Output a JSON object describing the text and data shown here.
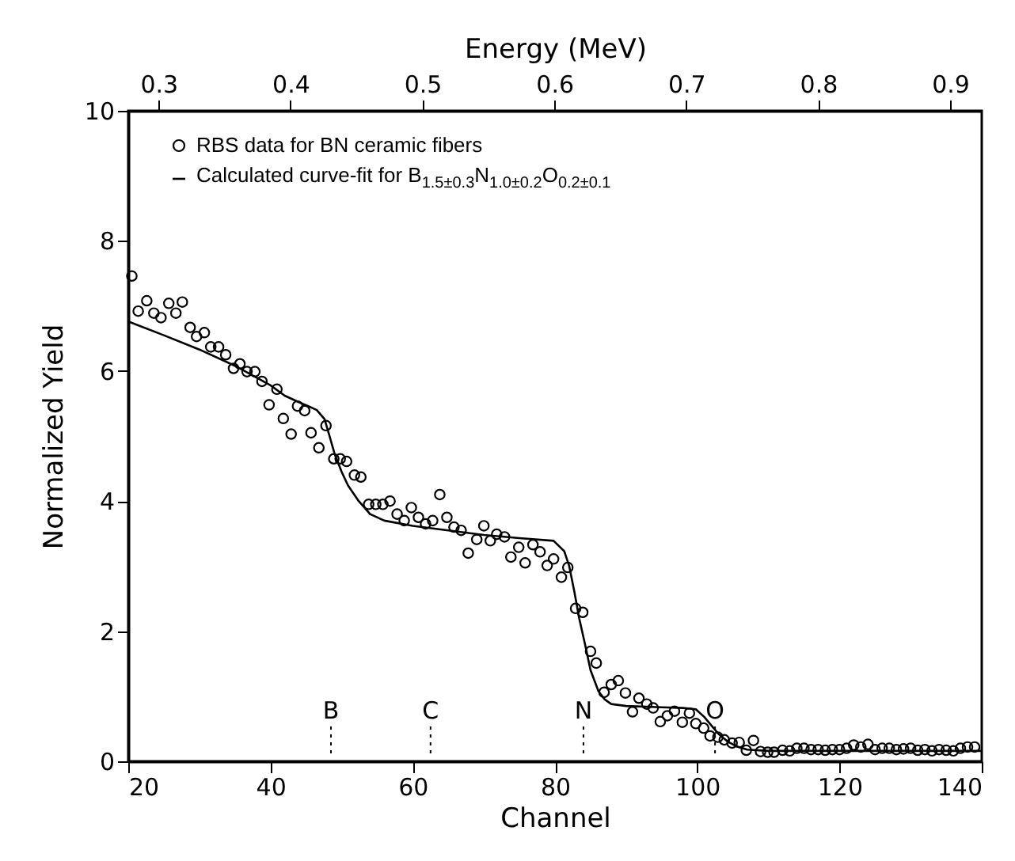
{
  "chart_data": {
    "type": "scatter",
    "xlabel": "Channel",
    "ylabel": "Normalized Yield",
    "x2label": "Energy (MeV)",
    "xlim": [
      20,
      140
    ],
    "xticks": [
      20,
      40,
      60,
      80,
      100,
      120,
      140
    ],
    "x2lim": [
      0.277,
      0.924
    ],
    "x2ticks": [
      0.3,
      0.4,
      0.5,
      0.6,
      0.7,
      0.8,
      0.9
    ],
    "ylim": [
      0,
      10
    ],
    "yticks": [
      0,
      2,
      4,
      6,
      8,
      10
    ],
    "grid": false,
    "legend": "top left",
    "series": [
      {
        "marker": "circle",
        "name": "RBS data for BN ceramic fibers",
        "color": "#000000",
        "x": [
          20.5,
          21.4,
          22.6,
          23.6,
          24.6,
          25.7,
          26.7,
          27.6,
          28.7,
          29.6,
          30.7,
          31.6,
          32.7,
          33.7,
          34.8,
          35.7,
          36.7,
          37.8,
          38.8,
          39.8,
          40.9,
          41.8,
          42.9,
          43.8,
          44.8,
          45.7,
          46.8,
          47.8,
          48.9,
          49.8,
          50.7,
          51.8,
          52.7,
          53.8,
          54.8,
          55.8,
          56.8,
          57.8,
          58.8,
          59.8,
          60.8,
          61.8,
          62.8,
          63.8,
          64.8,
          65.8,
          66.8,
          67.8,
          69.0,
          70.0,
          70.9,
          71.8,
          72.9,
          73.8,
          74.9,
          75.8,
          76.9,
          77.9,
          78.9,
          79.8,
          80.9,
          81.8,
          82.9,
          83.9,
          85.0,
          85.8,
          86.9,
          87.9,
          88.9,
          89.9,
          90.9,
          91.8,
          92.9,
          93.8,
          94.8,
          95.8,
          96.8,
          97.9,
          98.9,
          99.8,
          100.9,
          101.8,
          102.9,
          103.8,
          104.9,
          105.9,
          106.9,
          107.9,
          108.9,
          109.9,
          110.8,
          112,
          113,
          114,
          115,
          116,
          117,
          118,
          119,
          120,
          121,
          122,
          123,
          124,
          125,
          126,
          127,
          128,
          129,
          130,
          131,
          132,
          133,
          134,
          135,
          136,
          137,
          138,
          139
        ],
        "values": [
          7.46,
          6.92,
          7.08,
          6.89,
          6.82,
          7.04,
          6.89,
          7.06,
          6.67,
          6.53,
          6.59,
          6.37,
          6.37,
          6.25,
          6.04,
          6.11,
          5.99,
          5.99,
          5.84,
          5.48,
          5.72,
          5.27,
          5.03,
          5.46,
          5.39,
          5.05,
          4.82,
          5.16,
          4.65,
          4.65,
          4.61,
          4.4,
          4.37,
          3.95,
          3.95,
          3.95,
          4.0,
          3.8,
          3.7,
          3.9,
          3.75,
          3.65,
          3.7,
          4.1,
          3.75,
          3.6,
          3.55,
          3.2,
          3.41,
          3.62,
          3.39,
          3.49,
          3.45,
          3.14,
          3.29,
          3.05,
          3.33,
          3.22,
          3.01,
          3.11,
          2.83,
          2.98,
          2.35,
          2.29,
          1.69,
          1.51,
          1.06,
          1.18,
          1.24,
          1.05,
          0.76,
          0.97,
          0.88,
          0.82,
          0.61,
          0.7,
          0.77,
          0.6,
          0.74,
          0.58,
          0.51,
          0.39,
          0.37,
          0.33,
          0.28,
          0.29,
          0.17,
          0.32,
          0.15,
          0.14,
          0.14,
          0.17,
          0.16,
          0.2,
          0.2,
          0.18,
          0.18,
          0.17,
          0.18,
          0.18,
          0.2,
          0.25,
          0.22,
          0.26,
          0.18,
          0.2,
          0.2,
          0.18,
          0.19,
          0.2,
          0.17,
          0.18,
          0.16,
          0.18,
          0.17,
          0.16,
          0.2,
          0.22,
          0.22
        ]
      },
      {
        "type": "line",
        "line_style": "solid",
        "name": "Calculated curve-fit for B$_{1.5±0.3}$N$_{1.0±0.2}$O$_{0.2±0.1}$",
        "color": "#000000",
        "x": [
          20,
          25,
          30,
          35,
          40,
          42,
          44,
          45.3,
          46.5,
          47.6,
          48.3,
          49,
          50,
          50.9,
          52.4,
          54,
          56,
          60,
          65,
          70,
          75,
          79.8,
          81.3,
          82,
          82.7,
          83.4,
          84.2,
          85,
          86.1,
          87,
          87.9,
          90,
          95,
          98,
          99.8,
          101,
          102,
          103,
          104.2,
          105.5,
          107,
          110,
          120,
          130,
          140
        ],
        "values": [
          6.76,
          6.55,
          6.33,
          6.08,
          5.78,
          5.62,
          5.52,
          5.46,
          5.4,
          5.26,
          5.0,
          4.73,
          4.45,
          4.24,
          4.0,
          3.8,
          3.7,
          3.62,
          3.55,
          3.48,
          3.43,
          3.39,
          3.23,
          3.0,
          2.62,
          2.2,
          1.81,
          1.4,
          1.08,
          0.95,
          0.88,
          0.85,
          0.83,
          0.82,
          0.8,
          0.68,
          0.55,
          0.42,
          0.31,
          0.23,
          0.18,
          0.16,
          0.16,
          0.16,
          0.16
        ]
      }
    ],
    "ref_lines": [
      {
        "axis": "x",
        "value": 48.5,
        "label": "B",
        "line_style": "dotted"
      },
      {
        "axis": "x",
        "value": 62.5,
        "label": "C",
        "line_style": "dotted"
      },
      {
        "axis": "x",
        "value": 84,
        "label": "N",
        "line_style": "dotted"
      },
      {
        "axis": "x",
        "value": 102.5,
        "label": "O",
        "line_style": "dotted"
      }
    ]
  }
}
